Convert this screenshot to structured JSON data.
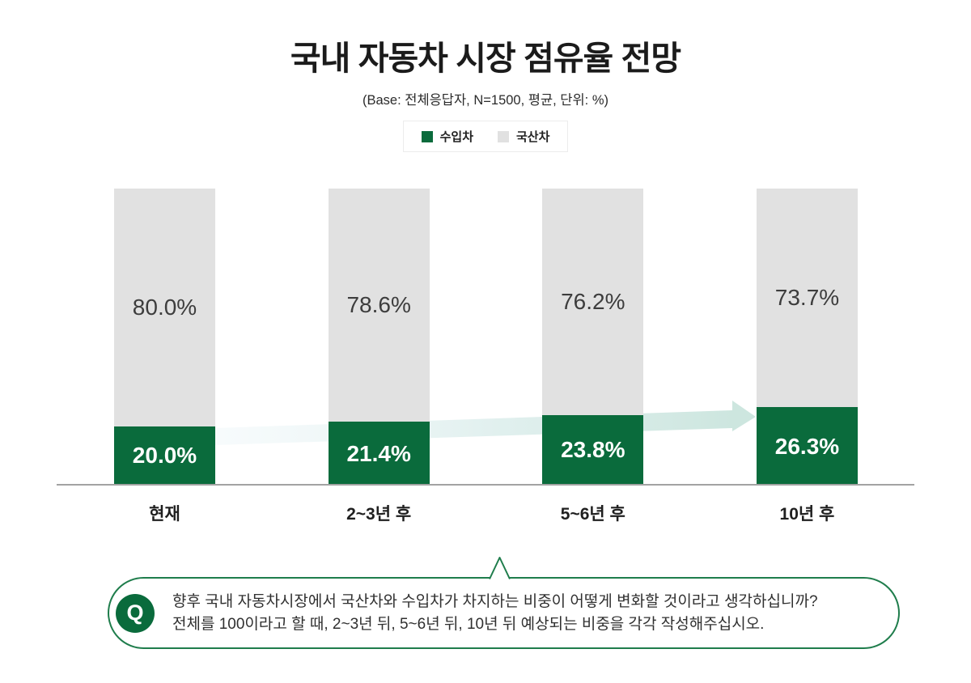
{
  "header": {
    "title": "국내 자동차 시장 점유율 전망",
    "subtitle": "(Base: 전체응답자, N=1500, 평균, 단위: %)"
  },
  "legend": {
    "items": [
      {
        "label": "수입차",
        "color": "#0a6b3c"
      },
      {
        "label": "국산차",
        "color": "#e1e1e1"
      }
    ]
  },
  "chart_data": {
    "type": "bar",
    "stacked": true,
    "unit": "%",
    "title": "국내 자동차 시장 점유율 전망",
    "categories": [
      "현재",
      "2~3년 후",
      "5~6년 후",
      "10년 후"
    ],
    "series": [
      {
        "name": "수입차",
        "color": "#0a6b3c",
        "values": [
          20.0,
          21.4,
          23.8,
          26.3
        ],
        "labels": [
          "20.0%",
          "21.4%",
          "23.8%",
          "26.3%"
        ],
        "label_color": "#ffffff"
      },
      {
        "name": "국산차",
        "color": "#e1e1e1",
        "values": [
          80.0,
          78.6,
          76.2,
          73.7
        ],
        "labels": [
          "80.0%",
          "78.6%",
          "76.2%",
          "73.7%"
        ],
        "label_color": "#3d3d3d"
      }
    ],
    "ylim": [
      0,
      100
    ],
    "legend_position": "top",
    "grid": false,
    "annotations": [
      "light teal upward trend arrow behind bars, from 현재 imported-car segment toward 10년 후 imported-car segment"
    ]
  },
  "question": {
    "badge": "Q",
    "line1": "향후 국내 자동차시장에서 국산차와 수입차가 차지하는 비중이 어떻게 변화할 것이라고 생각하십니까?",
    "line2": "전체를 100이라고 할 때, 2~3년 뒤, 5~6년 뒤, 10년 뒤 예상되는 비중을 각각 작성해주십시오."
  },
  "colors": {
    "imported_green": "#0a6b3c",
    "domestic_gray": "#e1e1e1",
    "arrow_teal": "#cde6df",
    "arrow_teal_faint": "#e9f4f7",
    "question_border_green": "#1f7d4c",
    "axis_line_gray": "#a3a3a3"
  }
}
